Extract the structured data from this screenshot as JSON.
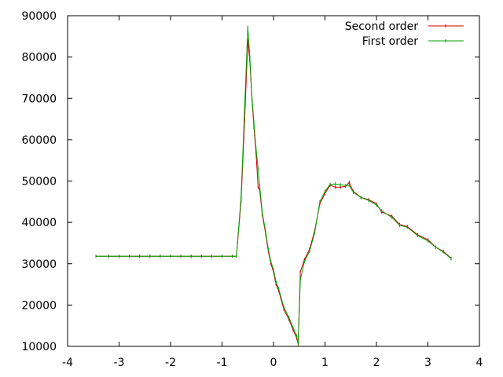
{
  "chart_data": {
    "type": "line",
    "title": "",
    "xlabel": "",
    "ylabel": "",
    "xlim": [
      -4,
      4
    ],
    "ylim": [
      10000,
      90000
    ],
    "xticks": [
      "-4",
      "-3",
      "-2",
      "-1",
      "0",
      "1",
      "2",
      "3",
      "4"
    ],
    "yticks": [
      "10000",
      "20000",
      "30000",
      "40000",
      "50000",
      "60000",
      "70000",
      "80000",
      "90000"
    ],
    "grid": false,
    "legend_position": "top-right",
    "series": [
      {
        "name": "Second order",
        "color": "#cc0000",
        "points": [
          [
            -3.45,
            31800
          ],
          [
            -3.2,
            31800
          ],
          [
            -3.0,
            31800
          ],
          [
            -2.8,
            31800
          ],
          [
            -2.6,
            31800
          ],
          [
            -2.4,
            31800
          ],
          [
            -2.2,
            31800
          ],
          [
            -2.0,
            31800
          ],
          [
            -1.8,
            31800
          ],
          [
            -1.6,
            31800
          ],
          [
            -1.4,
            31800
          ],
          [
            -1.2,
            31800
          ],
          [
            -1.0,
            31800
          ],
          [
            -0.8,
            31800
          ],
          [
            -0.72,
            31800
          ],
          [
            -0.63,
            45000
          ],
          [
            -0.56,
            65000
          ],
          [
            -0.5,
            84000
          ],
          [
            -0.46,
            79000
          ],
          [
            -0.42,
            70000
          ],
          [
            -0.38,
            63000
          ],
          [
            -0.34,
            57000
          ],
          [
            -0.3,
            48500
          ],
          [
            -0.27,
            48000
          ],
          [
            -0.22,
            42000
          ],
          [
            -0.15,
            37000
          ],
          [
            -0.1,
            33000
          ],
          [
            -0.05,
            30000
          ],
          [
            0.0,
            28000
          ],
          [
            0.05,
            25000
          ],
          [
            0.1,
            23500
          ],
          [
            0.2,
            19000
          ],
          [
            0.3,
            16500
          ],
          [
            0.38,
            14000
          ],
          [
            0.45,
            12000
          ],
          [
            0.48,
            10500
          ],
          [
            0.52,
            28000
          ],
          [
            0.6,
            31000
          ],
          [
            0.7,
            33500
          ],
          [
            0.8,
            38000
          ],
          [
            0.9,
            44500
          ],
          [
            1.0,
            47000
          ],
          [
            1.1,
            49000
          ],
          [
            1.2,
            48500
          ],
          [
            1.3,
            48500
          ],
          [
            1.4,
            48700
          ],
          [
            1.47,
            49700
          ],
          [
            1.55,
            47500
          ],
          [
            1.7,
            46000
          ],
          [
            1.85,
            45500
          ],
          [
            2.0,
            44500
          ],
          [
            2.1,
            42500
          ],
          [
            2.3,
            41500
          ],
          [
            2.45,
            39500
          ],
          [
            2.6,
            39000
          ],
          [
            2.8,
            37000
          ],
          [
            3.0,
            35800
          ],
          [
            3.15,
            34000
          ],
          [
            3.3,
            33000
          ],
          [
            3.45,
            31300
          ]
        ]
      },
      {
        "name": "First order",
        "color": "#00a000",
        "points": [
          [
            -3.45,
            31800
          ],
          [
            -3.2,
            31800
          ],
          [
            -3.0,
            31800
          ],
          [
            -2.8,
            31800
          ],
          [
            -2.6,
            31800
          ],
          [
            -2.4,
            31800
          ],
          [
            -2.2,
            31800
          ],
          [
            -2.0,
            31800
          ],
          [
            -1.8,
            31800
          ],
          [
            -1.6,
            31800
          ],
          [
            -1.4,
            31800
          ],
          [
            -1.2,
            31800
          ],
          [
            -1.0,
            31800
          ],
          [
            -0.8,
            31800
          ],
          [
            -0.72,
            31800
          ],
          [
            -0.63,
            46000
          ],
          [
            -0.56,
            68000
          ],
          [
            -0.5,
            87200
          ],
          [
            -0.46,
            80000
          ],
          [
            -0.42,
            70500
          ],
          [
            -0.38,
            64000
          ],
          [
            -0.34,
            58000
          ],
          [
            -0.3,
            53000
          ],
          [
            -0.27,
            49000
          ],
          [
            -0.22,
            42500
          ],
          [
            -0.15,
            37500
          ],
          [
            -0.1,
            33500
          ],
          [
            -0.05,
            30500
          ],
          [
            0.0,
            28500
          ],
          [
            0.05,
            25500
          ],
          [
            0.1,
            24000
          ],
          [
            0.2,
            19500
          ],
          [
            0.3,
            17000
          ],
          [
            0.38,
            14500
          ],
          [
            0.45,
            12500
          ],
          [
            0.48,
            10700
          ],
          [
            0.52,
            26000
          ],
          [
            0.6,
            30500
          ],
          [
            0.7,
            33000
          ],
          [
            0.8,
            37500
          ],
          [
            0.9,
            45000
          ],
          [
            1.0,
            47500
          ],
          [
            1.1,
            49200
          ],
          [
            1.2,
            49300
          ],
          [
            1.3,
            49100
          ],
          [
            1.4,
            48900
          ],
          [
            1.47,
            49000
          ],
          [
            1.55,
            47300
          ],
          [
            1.7,
            46000
          ],
          [
            1.85,
            45300
          ],
          [
            2.0,
            44200
          ],
          [
            2.1,
            42800
          ],
          [
            2.3,
            41200
          ],
          [
            2.45,
            39300
          ],
          [
            2.6,
            38800
          ],
          [
            2.8,
            36800
          ],
          [
            3.0,
            35500
          ],
          [
            3.15,
            34000
          ],
          [
            3.3,
            32800
          ],
          [
            3.45,
            31200
          ]
        ]
      }
    ]
  }
}
